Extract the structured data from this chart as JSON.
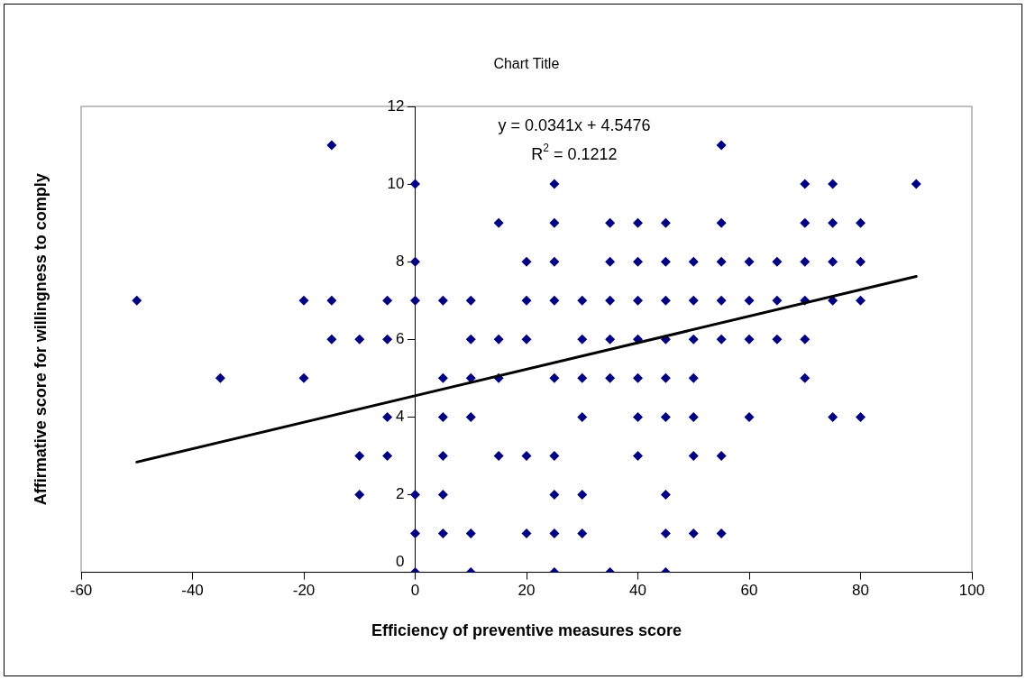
{
  "chart_data": {
    "type": "scatter",
    "title": "Chart Title",
    "xlabel": "Efficiency of preventive measures score",
    "ylabel": "Affirmative score for willingness to comply",
    "xlim": [
      -60,
      100
    ],
    "xticks": [
      -60,
      -40,
      -20,
      0,
      20,
      40,
      60,
      80,
      100
    ],
    "ylim": [
      0,
      12
    ],
    "yticks": [
      0,
      2,
      4,
      6,
      8,
      10,
      12
    ],
    "grid": false,
    "legend": false,
    "annotations": [
      "y = 0.0341x + 4.5476",
      "R$^{2}$ = 0.1212"
    ],
    "series": [
      {
        "type": "scatter",
        "color": "#000080",
        "marker": "diamond",
        "x": [
          -50,
          -35,
          -20,
          -20,
          -15,
          -15,
          -15,
          -10,
          -10,
          -10,
          -5,
          -5,
          -5,
          -5,
          0,
          0,
          0,
          0,
          0,
          0,
          5,
          5,
          5,
          5,
          5,
          5,
          10,
          10,
          10,
          10,
          10,
          10,
          15,
          15,
          15,
          15,
          20,
          20,
          20,
          20,
          20,
          25,
          25,
          25,
          25,
          25,
          25,
          25,
          25,
          25,
          30,
          30,
          30,
          30,
          30,
          30,
          35,
          35,
          35,
          35,
          35,
          35,
          40,
          40,
          40,
          40,
          40,
          40,
          40,
          45,
          45,
          45,
          45,
          45,
          45,
          45,
          45,
          45,
          50,
          50,
          50,
          50,
          50,
          50,
          50,
          55,
          55,
          55,
          55,
          55,
          55,
          55,
          60,
          60,
          60,
          60,
          65,
          65,
          65,
          70,
          70,
          70,
          70,
          70,
          70,
          75,
          75,
          75,
          75,
          75,
          80,
          80,
          80,
          80,
          90
        ],
        "values": [
          7,
          5,
          7,
          5,
          11,
          7,
          6,
          6,
          3,
          2,
          7,
          6,
          4,
          3,
          10,
          8,
          7,
          2,
          1,
          0,
          7,
          5,
          4,
          3,
          2,
          1,
          7,
          6,
          5,
          4,
          1,
          0,
          9,
          6,
          5,
          3,
          8,
          7,
          6,
          3,
          1,
          10,
          9,
          8,
          7,
          5,
          3,
          2,
          1,
          0,
          7,
          6,
          5,
          4,
          2,
          1,
          9,
          8,
          7,
          6,
          5,
          0,
          9,
          8,
          7,
          6,
          5,
          4,
          3,
          9,
          8,
          7,
          6,
          5,
          4,
          2,
          1,
          0,
          8,
          7,
          6,
          5,
          4,
          3,
          1,
          11,
          9,
          8,
          7,
          6,
          3,
          1,
          8,
          7,
          6,
          4,
          8,
          7,
          6,
          10,
          9,
          8,
          7,
          6,
          5,
          10,
          9,
          8,
          7,
          4,
          9,
          8,
          7,
          4,
          10
        ]
      },
      {
        "type": "line",
        "color": "#000000",
        "marker": "none",
        "x": [
          -50,
          90
        ],
        "values": [
          2.84,
          7.62
        ]
      }
    ]
  }
}
